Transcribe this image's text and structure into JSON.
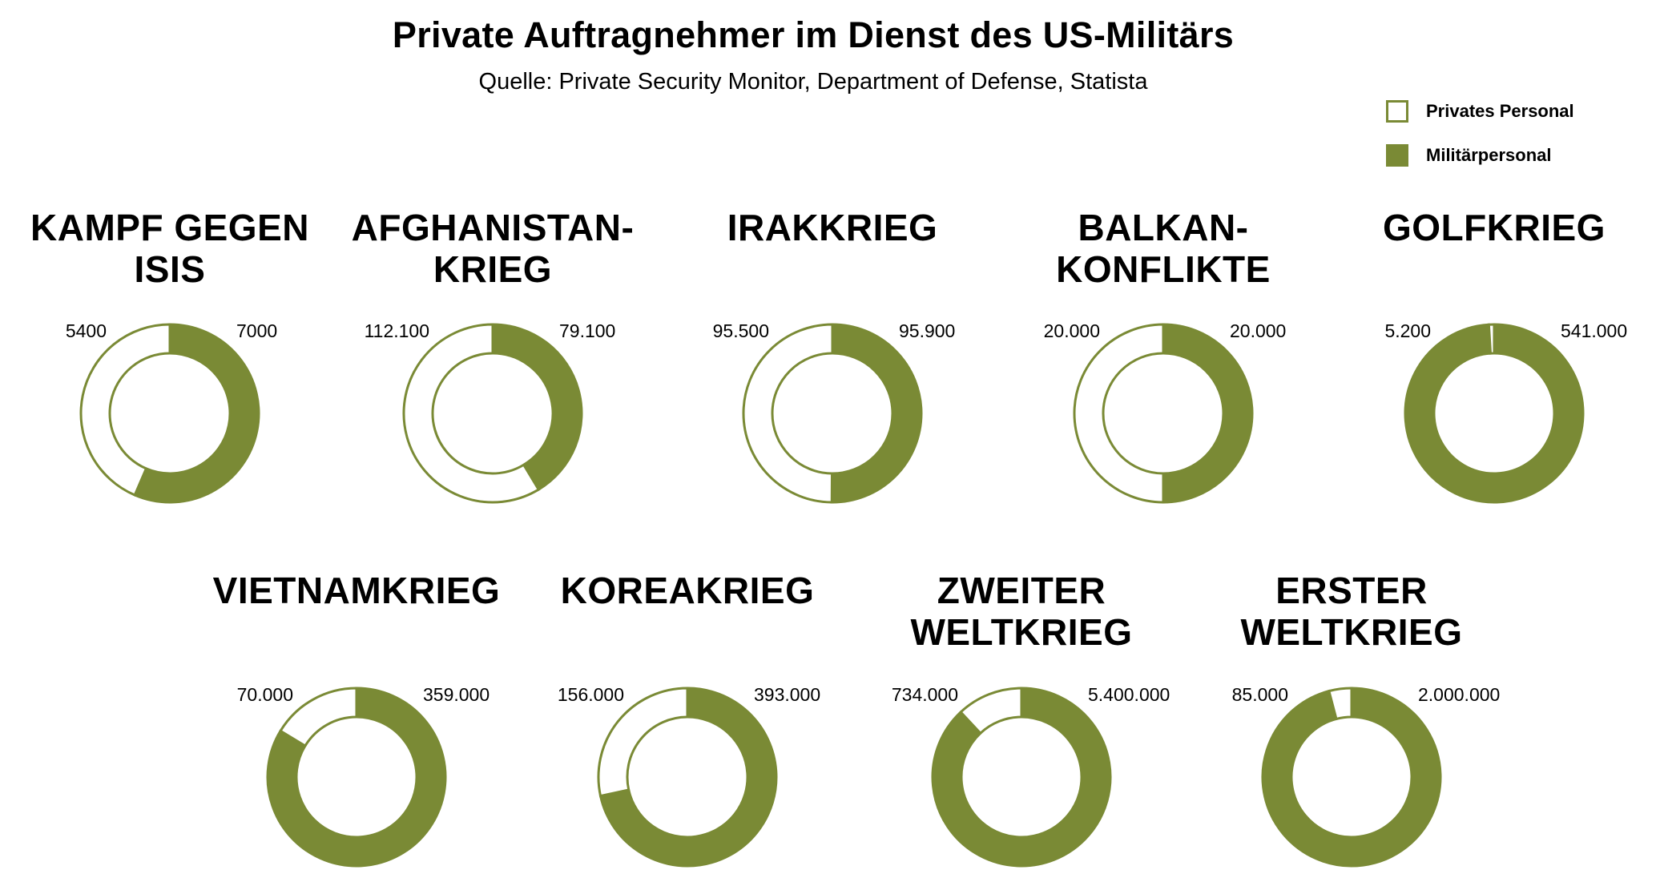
{
  "title": "Private Auftragnehmer im Dienst des US-Militärs",
  "subtitle": "Quelle: Private Security Monitor, Department of Defense, Statista",
  "colors": {
    "military": "#7a8a35",
    "private": "#ffffff",
    "outline": "#7a8a35"
  },
  "legend": {
    "private": "Privates Personal",
    "military": "Militärpersonal"
  },
  "chart_data": [
    {
      "type": "pie",
      "title": [
        "KAMPF GEGEN",
        "ISIS"
      ],
      "private_label": "5400",
      "military_label": "7000",
      "private": 5400,
      "military": 7000
    },
    {
      "type": "pie",
      "title": [
        "AFGHANISTAN-",
        "KRIEG"
      ],
      "private_label": "112.100",
      "military_label": "79.100",
      "private": 112100,
      "military": 79100
    },
    {
      "type": "pie",
      "title": [
        "IRAKKRIEG"
      ],
      "private_label": "95.500",
      "military_label": "95.900",
      "private": 95500,
      "military": 95900
    },
    {
      "type": "pie",
      "title": [
        "BALKAN-",
        "KONFLIKTE"
      ],
      "private_label": "20.000",
      "military_label": "20.000",
      "private": 20000,
      "military": 20000
    },
    {
      "type": "pie",
      "title": [
        "GOLFKRIEG"
      ],
      "private_label": "5.200",
      "military_label": "541.000",
      "private": 5200,
      "military": 541000
    },
    {
      "type": "pie",
      "title": [
        "VIETNAMKRIEG"
      ],
      "private_label": "70.000",
      "military_label": "359.000",
      "private": 70000,
      "military": 359000
    },
    {
      "type": "pie",
      "title": [
        "KOREAKRIEG"
      ],
      "private_label": "156.000",
      "military_label": "393.000",
      "private": 156000,
      "military": 393000
    },
    {
      "type": "pie",
      "title": [
        "ZWEITER",
        "WELTKRIEG"
      ],
      "private_label": "734.000",
      "military_label": "5.400.000",
      "private": 734000,
      "military": 5400000
    },
    {
      "type": "pie",
      "title": [
        "ERSTER",
        "WELTKRIEG"
      ],
      "private_label": "85.000",
      "military_label": "2.000.000",
      "private": 85000,
      "military": 2000000
    }
  ]
}
